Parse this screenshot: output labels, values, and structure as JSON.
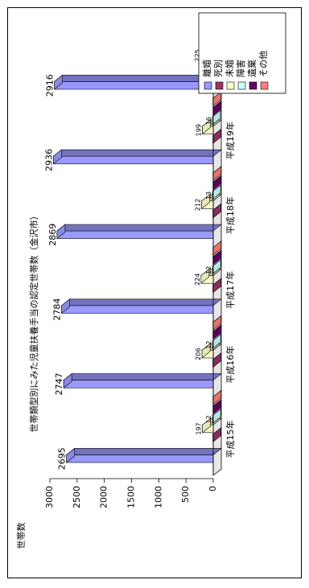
{
  "chart_data": {
    "type": "bar",
    "orientation": "rotated-90-ccw",
    "title": "世帯類型別にみた児童扶養手当の認定世帯数（金沢市）",
    "ylabel": "世帯数",
    "xlabel": "",
    "ylim": [
      0,
      3000
    ],
    "yticks": [
      0,
      500,
      1000,
      1500,
      2000,
      2500,
      3000
    ],
    "grid": false,
    "legend_position": "top-right",
    "categories": [
      "平成15年",
      "平成16年",
      "平成17年",
      "平成18年",
      "平成19年",
      "平成20年"
    ],
    "series": [
      {
        "name": "離婚",
        "color": "#9999ff",
        "values": [
          2695,
          2747,
          2784,
          2869,
          2936,
          2916
        ],
        "labels": [
          "2695",
          "2747",
          "2784",
          "2869",
          "2936",
          "2916"
        ]
      },
      {
        "name": "死別",
        "color": "#993366",
        "values": [
          5,
          5,
          5,
          5,
          5,
          5
        ],
        "labels": [
          "",
          "",
          "",
          "",
          "",
          ""
        ]
      },
      {
        "name": "未婚",
        "color": "#ffffcc",
        "values": [
          197,
          206,
          224,
          212,
          199,
          225
        ],
        "labels": [
          "197",
          "206",
          "224",
          "212",
          "199",
          "225"
        ]
      },
      {
        "name": "障害",
        "color": "#ccffff",
        "values": [
          12,
          12,
          12,
          13,
          16,
          19
        ],
        "labels": [
          "12",
          "12",
          "12",
          "13",
          "16",
          "19"
        ]
      },
      {
        "name": "遺棄",
        "color": "#660066",
        "values": [
          4,
          4,
          4,
          4,
          4,
          4
        ],
        "labels": [
          "",
          "",
          "",
          "",
          "",
          ""
        ]
      },
      {
        "name": "その他",
        "color": "#ff8080",
        "values": [
          4,
          4,
          4,
          4,
          4,
          4
        ],
        "labels": [
          "",
          "",
          "",
          "",
          "",
          ""
        ]
      }
    ]
  }
}
